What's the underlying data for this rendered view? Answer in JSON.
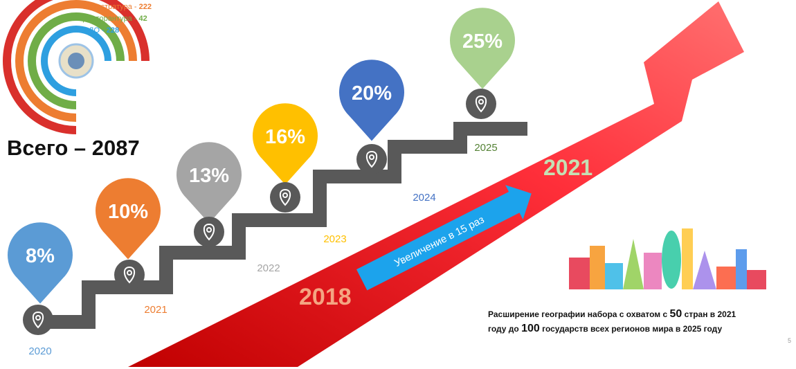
{
  "legend": [
    {
      "label": "Магистратура - ",
      "value": "222",
      "color": "#ed7d31"
    },
    {
      "label": "Докторантура - ",
      "value": "42",
      "color": "#70ad47"
    },
    {
      "label": "ФДО - ",
      "value": "228",
      "color": "#2e9fe0"
    }
  ],
  "total": "Всего – 2087",
  "steps": [
    {
      "year": "2020",
      "percent": "8%",
      "color": "#5b9bd5"
    },
    {
      "year": "2021",
      "percent": "10%",
      "color": "#ed7d31"
    },
    {
      "year": "2022",
      "percent": "13%",
      "color": "#a5a5a5"
    },
    {
      "year": "2023",
      "percent": "16%",
      "color": "#ffc000"
    },
    {
      "year": "2024",
      "percent": "20%",
      "color": "#4472c4"
    },
    {
      "year": "2025",
      "percent": "25%",
      "color": "#a9d18e"
    }
  ],
  "arrow": {
    "start": "2018",
    "end": "2021",
    "caption": "Увеличение в 15 раз"
  },
  "footnote": [
    [
      "Расширение географии набора с охватом с ",
      "50",
      " стран в 2021"
    ],
    [
      "году до ",
      "100",
      " государств всех регионов мира в 2025 году"
    ]
  ],
  "page_number": "5"
}
